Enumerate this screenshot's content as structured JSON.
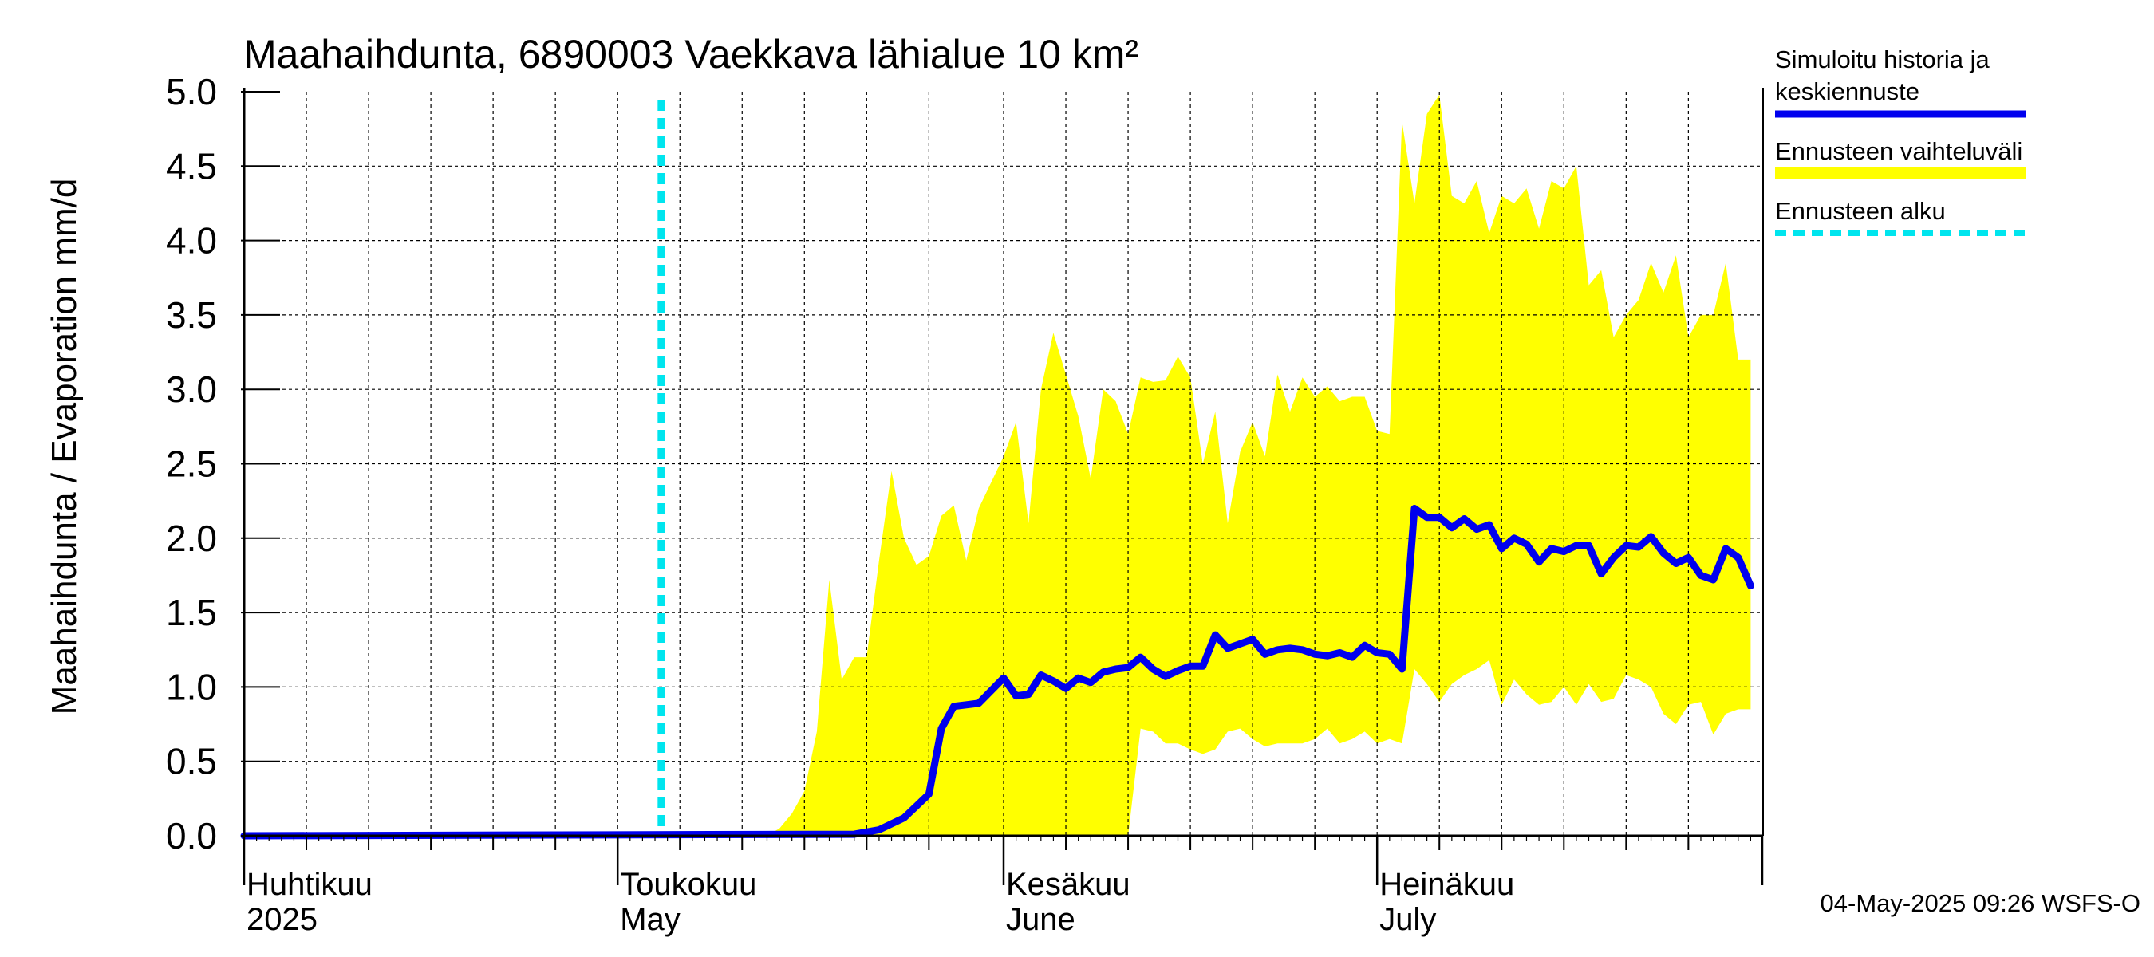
{
  "chart_data": {
    "type": "area",
    "title": "Maahaihdunta, 6890003 Vaekkava lähialue 10 km²",
    "ylabel": "Maahaihdunta / Evaporation   mm/d",
    "ylim": [
      0,
      5
    ],
    "yticks": [
      "0.0",
      "0.5",
      "1.0",
      "1.5",
      "2.0",
      "2.5",
      "3.0",
      "3.5",
      "4.0",
      "4.5",
      "5.0"
    ],
    "x_start": "2025-04-01",
    "x_end": "2025-07-31",
    "months": [
      {
        "date": "2025-04-01",
        "label_fi": "Huhtikuu",
        "label_en": "2025"
      },
      {
        "date": "2025-05-01",
        "label_fi": "Toukokuu",
        "label_en": "May"
      },
      {
        "date": "2025-06-01",
        "label_fi": "Kesäkuu",
        "label_en": "June"
      },
      {
        "date": "2025-07-01",
        "label_fi": "Heinäkuu",
        "label_en": "July"
      }
    ],
    "forecast_start": "2025-05-04",
    "grid": true,
    "legend_placement": "right",
    "legend": [
      {
        "label": "Simuloitu historia ja keskiennuste",
        "color": "#0000ee",
        "style": "line"
      },
      {
        "label": "Ennusteen vaihteluväli",
        "color": "#ffff00",
        "style": "band"
      },
      {
        "label": "Ennusteen alku",
        "color": "#00e5ee",
        "style": "dashed"
      }
    ],
    "series": [
      {
        "name": "Simuloitu historia ja keskiennuste",
        "color": "#0000ee",
        "x": [
          "2025-04-01",
          "2025-05-20",
          "2025-05-22",
          "2025-05-24",
          "2025-05-26",
          "2025-05-27",
          "2025-05-28",
          "2025-05-29",
          "2025-05-30",
          "2025-06-01",
          "2025-06-02",
          "2025-06-03",
          "2025-06-04",
          "2025-06-05",
          "2025-06-06",
          "2025-06-07",
          "2025-06-08",
          "2025-06-09",
          "2025-06-10",
          "2025-06-11",
          "2025-06-12",
          "2025-06-13",
          "2025-06-14",
          "2025-06-15",
          "2025-06-16",
          "2025-06-17",
          "2025-06-18",
          "2025-06-19",
          "2025-06-20",
          "2025-06-21",
          "2025-06-22",
          "2025-06-23",
          "2025-06-24",
          "2025-06-25",
          "2025-06-26",
          "2025-06-27",
          "2025-06-28",
          "2025-06-29",
          "2025-06-30",
          "2025-07-01",
          "2025-07-02",
          "2025-07-03",
          "2025-07-04",
          "2025-07-05",
          "2025-07-06",
          "2025-07-07",
          "2025-07-08",
          "2025-07-09",
          "2025-07-10",
          "2025-07-11",
          "2025-07-12",
          "2025-07-13",
          "2025-07-14",
          "2025-07-15",
          "2025-07-16",
          "2025-07-17",
          "2025-07-18",
          "2025-07-19",
          "2025-07-20",
          "2025-07-21",
          "2025-07-22",
          "2025-07-23",
          "2025-07-24",
          "2025-07-25",
          "2025-07-26",
          "2025-07-27",
          "2025-07-28",
          "2025-07-29",
          "2025-07-30",
          "2025-07-31"
        ],
        "values": [
          0.0,
          0.01,
          0.04,
          0.12,
          0.28,
          0.72,
          0.87,
          0.88,
          0.89,
          1.06,
          0.94,
          0.95,
          1.08,
          1.04,
          0.99,
          1.06,
          1.03,
          1.1,
          1.12,
          1.13,
          1.2,
          1.12,
          1.07,
          1.11,
          1.14,
          1.14,
          1.35,
          1.26,
          1.29,
          1.32,
          1.22,
          1.25,
          1.26,
          1.25,
          1.22,
          1.21,
          1.23,
          1.2,
          1.28,
          1.23,
          1.22,
          1.12,
          2.2,
          2.14,
          2.14,
          2.07,
          2.13,
          2.06,
          2.09,
          1.93,
          2.0,
          1.96,
          1.84,
          1.93,
          1.91,
          1.95,
          1.95,
          1.76,
          1.87,
          1.95,
          1.94,
          2.01,
          1.9,
          1.83,
          1.87,
          1.75,
          1.72,
          1.93,
          1.87,
          1.68
        ]
      },
      {
        "name": "Ennusteen vaihteluväli (upper)",
        "color": "#ffff00",
        "x": [
          "2025-05-13",
          "2025-05-14",
          "2025-05-15",
          "2025-05-16",
          "2025-05-17",
          "2025-05-18",
          "2025-05-19",
          "2025-05-20",
          "2025-05-21",
          "2025-05-22",
          "2025-05-23",
          "2025-05-24",
          "2025-05-25",
          "2025-05-26",
          "2025-05-27",
          "2025-05-28",
          "2025-05-29",
          "2025-05-30",
          "2025-06-01",
          "2025-06-02",
          "2025-06-03",
          "2025-06-04",
          "2025-06-05",
          "2025-06-06",
          "2025-06-07",
          "2025-06-08",
          "2025-06-09",
          "2025-06-10",
          "2025-06-11",
          "2025-06-12",
          "2025-06-13",
          "2025-06-14",
          "2025-06-15",
          "2025-06-16",
          "2025-06-17",
          "2025-06-18",
          "2025-06-19",
          "2025-06-20",
          "2025-06-21",
          "2025-06-22",
          "2025-06-23",
          "2025-06-24",
          "2025-06-25",
          "2025-06-26",
          "2025-06-27",
          "2025-06-28",
          "2025-06-29",
          "2025-06-30",
          "2025-07-01",
          "2025-07-02",
          "2025-07-03",
          "2025-07-04",
          "2025-07-05",
          "2025-07-06",
          "2025-07-07",
          "2025-07-08",
          "2025-07-09",
          "2025-07-10",
          "2025-07-11",
          "2025-07-12",
          "2025-07-13",
          "2025-07-14",
          "2025-07-15",
          "2025-07-16",
          "2025-07-17",
          "2025-07-18",
          "2025-07-19",
          "2025-07-20",
          "2025-07-21",
          "2025-07-22",
          "2025-07-23",
          "2025-07-24",
          "2025-07-25",
          "2025-07-26",
          "2025-07-27",
          "2025-07-28",
          "2025-07-29",
          "2025-07-30",
          "2025-07-31"
        ],
        "values": [
          0.0,
          0.05,
          0.15,
          0.3,
          0.7,
          1.72,
          1.05,
          1.2,
          1.2,
          1.85,
          2.45,
          2.0,
          1.82,
          1.88,
          2.15,
          2.22,
          1.85,
          2.2,
          2.55,
          2.78,
          2.1,
          3.0,
          3.38,
          3.1,
          2.82,
          2.4,
          3.0,
          2.92,
          2.7,
          3.08,
          3.05,
          3.06,
          3.22,
          3.08,
          2.5,
          2.85,
          2.1,
          2.58,
          2.78,
          2.55,
          3.1,
          2.85,
          3.08,
          2.95,
          3.02,
          2.92,
          2.95,
          2.95,
          2.72,
          2.7,
          4.8,
          4.25,
          4.85,
          4.98,
          4.3,
          4.25,
          4.4,
          4.05,
          4.3,
          4.25,
          4.35,
          4.08,
          4.4,
          4.35,
          4.5,
          3.7,
          3.8,
          3.35,
          3.5,
          3.6,
          3.85,
          3.65,
          3.9,
          3.35,
          3.5,
          3.5,
          3.85,
          3.2,
          3.2
        ]
      },
      {
        "name": "Ennusteen vaihteluväli (lower)",
        "color": "#ffff00",
        "x": [
          "2025-05-13",
          "2025-06-11",
          "2025-06-12",
          "2025-06-13",
          "2025-06-14",
          "2025-06-15",
          "2025-06-16",
          "2025-06-17",
          "2025-06-18",
          "2025-06-19",
          "2025-06-20",
          "2025-06-21",
          "2025-06-22",
          "2025-06-23",
          "2025-06-24",
          "2025-06-25",
          "2025-06-26",
          "2025-06-27",
          "2025-06-28",
          "2025-06-29",
          "2025-06-30",
          "2025-07-01",
          "2025-07-02",
          "2025-07-03",
          "2025-07-04",
          "2025-07-05",
          "2025-07-06",
          "2025-07-07",
          "2025-07-08",
          "2025-07-09",
          "2025-07-10",
          "2025-07-11",
          "2025-07-12",
          "2025-07-13",
          "2025-07-14",
          "2025-07-15",
          "2025-07-16",
          "2025-07-17",
          "2025-07-18",
          "2025-07-19",
          "2025-07-20",
          "2025-07-21",
          "2025-07-22",
          "2025-07-23",
          "2025-07-24",
          "2025-07-25",
          "2025-07-26",
          "2025-07-27",
          "2025-07-28",
          "2025-07-29",
          "2025-07-30",
          "2025-07-31"
        ],
        "values": [
          0.0,
          0.0,
          0.72,
          0.7,
          0.62,
          0.62,
          0.58,
          0.55,
          0.58,
          0.7,
          0.72,
          0.65,
          0.6,
          0.62,
          0.62,
          0.62,
          0.65,
          0.72,
          0.62,
          0.65,
          0.7,
          0.62,
          0.65,
          0.62,
          1.12,
          1.02,
          0.9,
          1.02,
          1.08,
          1.12,
          1.18,
          0.88,
          1.05,
          0.95,
          0.88,
          0.9,
          1.0,
          0.88,
          1.02,
          0.9,
          0.92,
          1.08,
          1.05,
          1.0,
          0.82,
          0.75,
          0.88,
          0.9,
          0.68,
          0.82,
          0.85,
          0.85
        ]
      }
    ]
  },
  "footer": {
    "timestamp": "04-May-2025 09:26 WSFS-O"
  }
}
